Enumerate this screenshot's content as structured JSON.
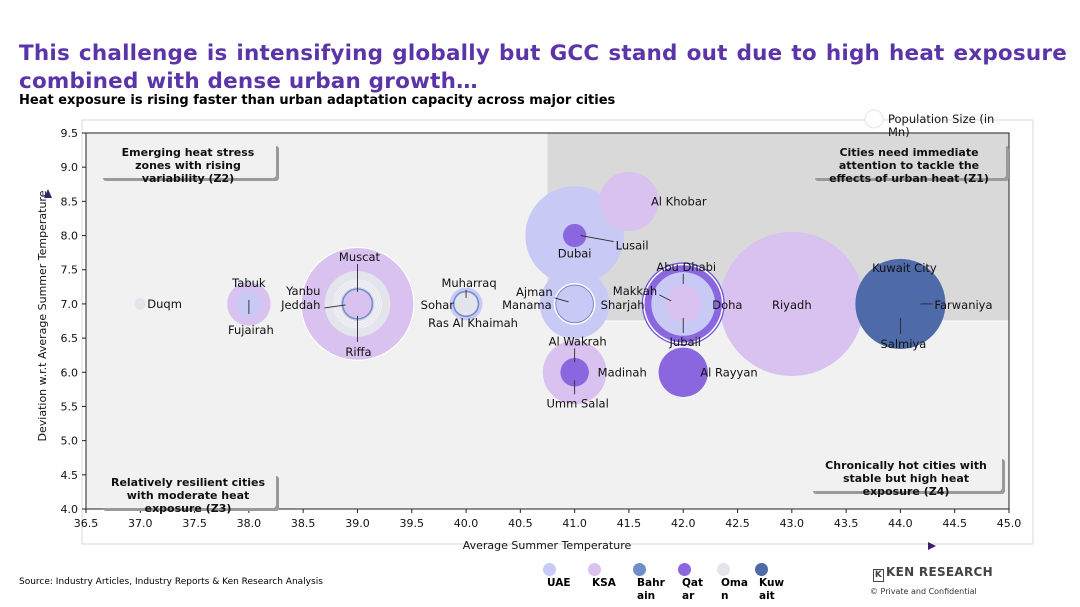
{
  "title": "This challenge is intensifying globally but GCC stand out due to high heat exposure combined with dense urban growth…",
  "subtitle": "Heat exposure is rising faster than urban adaptation capacity across major cities",
  "source": "Source: Industry Articles, Industry Reports & Ken Research Analysis",
  "logo": {
    "mark": "K",
    "text": "KEN RESEARCH"
  },
  "confidential": "©   Private and Confidential",
  "colors": {
    "UAE": "#c9c9f5",
    "KSA": "#d9c2ef",
    "Bahrain": "#6f8fc7",
    "Qatar": "#8a67df",
    "Oman": "#e4e4ec",
    "Kuwait": "#4f6aa8"
  },
  "legend": {
    "size_title": "Population Size (in Mn)",
    "items": [
      {
        "key": "UAE",
        "label": "UAE",
        "color": "#c9c9f5"
      },
      {
        "key": "KSA",
        "label": "KSA",
        "color": "#d9c2ef"
      },
      {
        "key": "Bahrain",
        "label": "Bahrain",
        "color": "#6f8fc7"
      },
      {
        "key": "Qatar",
        "label": "Qatar",
        "color": "#8a67df"
      },
      {
        "key": "Oman",
        "label": "Oman",
        "color": "#e4e4ec"
      },
      {
        "key": "Kuwait",
        "label": "Kuwait",
        "color": "#4f6aa8"
      }
    ]
  },
  "chart_data": {
    "type": "scatter",
    "xlabel": "Average Summer Temperature",
    "ylabel": "Deviation w.r.t Average Summer Temperature",
    "xlim": [
      36.5,
      45.0
    ],
    "ylim": [
      4.0,
      9.5
    ],
    "xticks": [
      "36.5",
      "37.0",
      "37.5",
      "38.0",
      "38.5",
      "39.0",
      "39.5",
      "40.0",
      "40.5",
      "41.0",
      "41.5",
      "42.0",
      "42.5",
      "43.0",
      "43.5",
      "44.0",
      "44.5",
      "45.0"
    ],
    "yticks": [
      "4.0",
      "4.5",
      "5.0",
      "5.5",
      "6.0",
      "6.5",
      "7.0",
      "7.5",
      "8.0",
      "8.5",
      "9.0",
      "9.5"
    ],
    "quadrant_split": {
      "x": 40.75,
      "y": 6.75
    },
    "quadrants": [
      {
        "id": "Z2",
        "text": "Emerging heat stress zones with rising variability (Z2)"
      },
      {
        "id": "Z1",
        "text": "Cities need immediate attention to tackle the effects of urban heat (Z1)"
      },
      {
        "id": "Z3",
        "text": "Relatively resilient cities with moderate heat exposure (Z3)"
      },
      {
        "id": "Z4",
        "text": "Chronically hot cities with stable but high heat exposure (Z4)"
      }
    ],
    "cities": [
      {
        "name": "Duqm",
        "country": "Oman",
        "x": 37.0,
        "y": 7.0,
        "size": 0.05
      },
      {
        "name": "Tabuk",
        "country": "KSA",
        "x": 38.0,
        "y": 7.0,
        "size": 0.7
      },
      {
        "name": "Fujairah",
        "country": "UAE",
        "x": 38.0,
        "y": 7.0,
        "size": 0.25
      },
      {
        "name": "Jeddah",
        "country": "KSA",
        "x": 39.0,
        "y": 7.0,
        "size": 4.7
      },
      {
        "name": "Muscat",
        "country": "Oman",
        "x": 39.0,
        "y": 7.0,
        "size": 1.6
      },
      {
        "name": "Yanbu",
        "country": "KSA",
        "x": 39.0,
        "y": 7.0,
        "size": 0.3
      },
      {
        "name": "Riffa",
        "country": "Bahrain",
        "x": 39.0,
        "y": 7.0,
        "size": 0.4
      },
      {
        "name": "Muharraq",
        "country": "Bahrain",
        "x": 40.0,
        "y": 7.0,
        "size": 0.26
      },
      {
        "name": "Sohar",
        "country": "Oman",
        "x": 40.0,
        "y": 7.0,
        "size": 0.2
      },
      {
        "name": "Ras Al Khaimah",
        "country": "UAE",
        "x": 40.0,
        "y": 7.0,
        "size": 0.4
      },
      {
        "name": "Dubai",
        "country": "UAE",
        "x": 41.0,
        "y": 8.0,
        "size": 3.6
      },
      {
        "name": "Lusail",
        "country": "Qatar",
        "x": 41.0,
        "y": 8.0,
        "size": 0.2
      },
      {
        "name": "Al Khobar",
        "country": "KSA",
        "x": 41.5,
        "y": 8.5,
        "size": 1.3
      },
      {
        "name": "Ajman",
        "country": "UAE",
        "x": 41.0,
        "y": 7.0,
        "size": 0.5
      },
      {
        "name": "Manama",
        "country": "Bahrain",
        "x": 41.0,
        "y": 7.0,
        "size": 0.6
      },
      {
        "name": "Sharjah",
        "country": "UAE",
        "x": 41.0,
        "y": 7.0,
        "size": 1.8
      },
      {
        "name": "Al Wakrah",
        "country": "Qatar",
        "x": 41.0,
        "y": 6.0,
        "size": 0.3
      },
      {
        "name": "Madinah",
        "country": "KSA",
        "x": 41.0,
        "y": 6.0,
        "size": 1.5
      },
      {
        "name": "Umm Salal",
        "country": "Qatar",
        "x": 41.0,
        "y": 6.0,
        "size": 0.1
      },
      {
        "name": "Abu Dhabi",
        "country": "UAE",
        "x": 42.0,
        "y": 7.0,
        "size": 1.5
      },
      {
        "name": "Makkah",
        "country": "KSA",
        "x": 42.0,
        "y": 7.0,
        "size": 2.4
      },
      {
        "name": "Doha",
        "country": "Qatar",
        "x": 42.0,
        "y": 7.0,
        "size": 2.3
      },
      {
        "name": "Jubail",
        "country": "KSA",
        "x": 42.0,
        "y": 7.0,
        "size": 0.5
      },
      {
        "name": "Al Rayyan",
        "country": "Qatar",
        "x": 42.0,
        "y": 6.0,
        "size": 0.9
      },
      {
        "name": "Riyadh",
        "country": "KSA",
        "x": 43.0,
        "y": 7.0,
        "size": 7.7
      },
      {
        "name": "Kuwait City",
        "country": "Kuwait",
        "x": 44.0,
        "y": 7.0,
        "size": 3.0
      },
      {
        "name": "Farwaniya",
        "country": "Kuwait",
        "x": 44.0,
        "y": 7.0,
        "size": 1.1
      },
      {
        "name": "Salmiya",
        "country": "Kuwait",
        "x": 44.0,
        "y": 7.0,
        "size": 0.3
      }
    ]
  }
}
